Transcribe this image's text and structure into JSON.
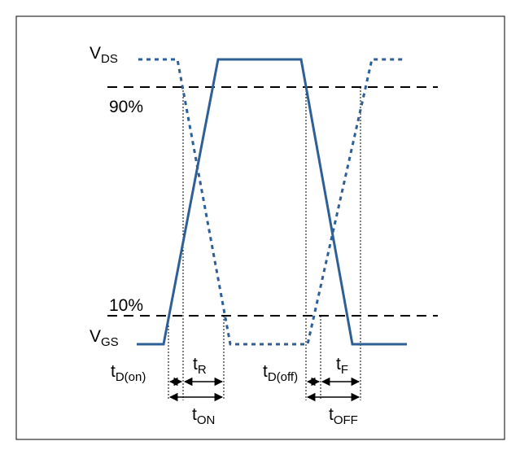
{
  "labels": {
    "vds_main": "V",
    "vds_sub": "DS",
    "vgs_main": "V",
    "vgs_sub": "GS",
    "pct90": "90%",
    "pct10": "10%",
    "td_on_main": "t",
    "td_on_sub": "D(on)",
    "tr_main": "t",
    "tr_sub": "R",
    "td_off_main": "t",
    "td_off_sub": "D(off)",
    "tf_main": "t",
    "tf_sub": "F",
    "ton_main": "t",
    "ton_sub": "ON",
    "toff_main": "t",
    "toff_sub": "OFF"
  },
  "colors": {
    "waveform": "#2e5f97",
    "frame": "#000000",
    "threshold": "#000000",
    "guide": "#000000"
  }
}
